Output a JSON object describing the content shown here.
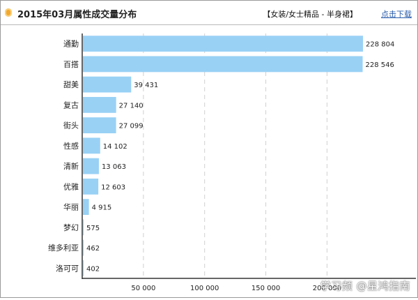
{
  "header": {
    "title": "2015年03月属性成交量分布",
    "subtitle": "【女装/女士精品 - 半身裙】",
    "download_label": "点击下载",
    "bullet_color": "#f0a830"
  },
  "watermark": "学习频 @星鸿指南",
  "chart_data": {
    "type": "bar",
    "orientation": "horizontal",
    "title": "2015年03月属性成交量分布",
    "categories": [
      "通勤",
      "百搭",
      "甜美",
      "复古",
      "街头",
      "性感",
      "清新",
      "优雅",
      "华丽",
      "梦幻",
      "维多利亚",
      "洛可可"
    ],
    "values": [
      228804,
      228546,
      39431,
      27140,
      27099,
      14102,
      13063,
      12603,
      4915,
      575,
      462,
      402
    ],
    "value_labels": [
      "228 804",
      "228 546",
      "39 431",
      "27 140",
      "27 099",
      "14 102",
      "13 063",
      "12 603",
      "4 915",
      "575",
      "462",
      "402"
    ],
    "x_ticks": [
      50000,
      100000,
      150000,
      200000
    ],
    "x_tick_labels": [
      "50 000",
      "100 000",
      "150 000",
      "200 000"
    ],
    "xlim": [
      0,
      230000
    ],
    "grid": true,
    "bar_color": "#99d1f5",
    "grid_color": "#d0d0d0"
  }
}
